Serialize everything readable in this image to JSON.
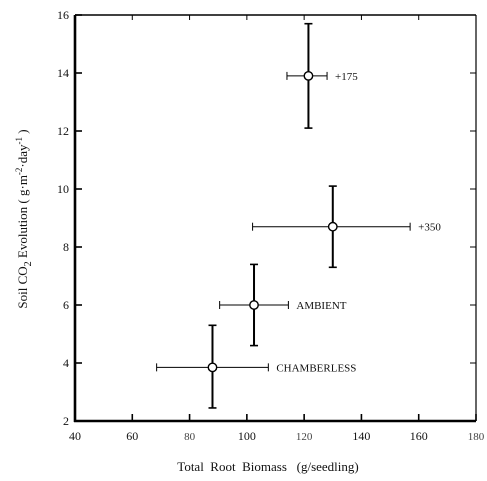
{
  "chart_data": {
    "type": "scatter",
    "title": "",
    "xlabel": "Total  Root  Biomass   (g/seedling)",
    "ylabel_parts": {
      "pre": "Soil CO",
      "sub": "2",
      "mid": " Evolution ( g·m",
      "sup1": "-2",
      "mid2": "·day",
      "sup2": "-1",
      "post": " )"
    },
    "xlim": [
      40,
      180
    ],
    "ylim": [
      2,
      16
    ],
    "x_ticks": [
      {
        "value": 40,
        "label": "40",
        "light": false
      },
      {
        "value": 60,
        "label": "60",
        "light": false
      },
      {
        "value": 80,
        "label": "80",
        "light": true
      },
      {
        "value": 100,
        "label": "100",
        "light": false
      },
      {
        "value": 120,
        "label": "120",
        "light": true
      },
      {
        "value": 140,
        "label": "140",
        "light": false
      },
      {
        "value": 160,
        "label": "160",
        "light": false
      },
      {
        "value": 180,
        "label": "180",
        "light": true
      }
    ],
    "y_ticks": [
      {
        "value": 2,
        "label": "2"
      },
      {
        "value": 4,
        "label": "4"
      },
      {
        "value": 6,
        "label": "6"
      },
      {
        "value": 8,
        "label": "8"
      },
      {
        "value": 10,
        "label": "10"
      },
      {
        "value": 12,
        "label": "12"
      },
      {
        "value": 14,
        "label": "14"
      },
      {
        "value": 16,
        "label": "16"
      }
    ],
    "grid": false,
    "legend": "none",
    "points": [
      {
        "label": "+175",
        "x": 121.5,
        "y": 13.9,
        "xerr": [
          114,
          128
        ],
        "yerr": [
          12.1,
          15.7
        ]
      },
      {
        "label": "+350",
        "x": 130,
        "y": 8.7,
        "xerr": [
          102,
          157
        ],
        "yerr": [
          7.3,
          10.1
        ]
      },
      {
        "label": "AMBIENT",
        "x": 102.5,
        "y": 6.0,
        "xerr": [
          90.5,
          114.5
        ],
        "yerr": [
          4.6,
          7.4
        ]
      },
      {
        "label": "CHAMBERLESS",
        "x": 88,
        "y": 3.85,
        "xerr": [
          68.5,
          107.5
        ],
        "yerr": [
          2.45,
          5.3
        ]
      }
    ]
  }
}
